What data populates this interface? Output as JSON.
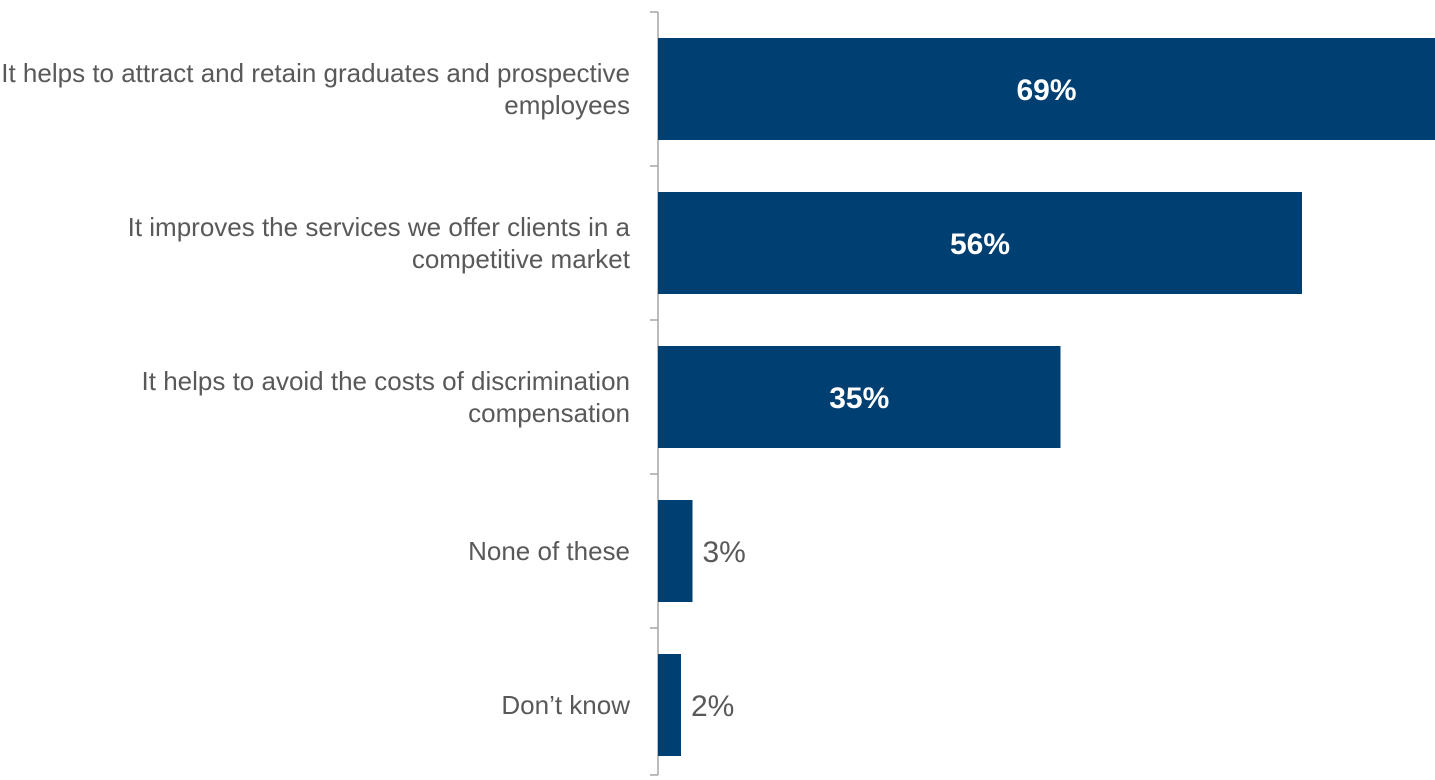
{
  "chart_data": {
    "type": "hbar",
    "categories": [
      "It helps to attract and retain graduates and prospective employees",
      "It improves the services we offer clients in a competitive market",
      "It helps to avoid the costs of discrimination compensation",
      "None of these",
      "Don’t know"
    ],
    "values": [
      69,
      56,
      35,
      3,
      2
    ],
    "value_labels": [
      "69%",
      "56%",
      "35%",
      "3%",
      "2%"
    ],
    "color": "#003f72"
  }
}
